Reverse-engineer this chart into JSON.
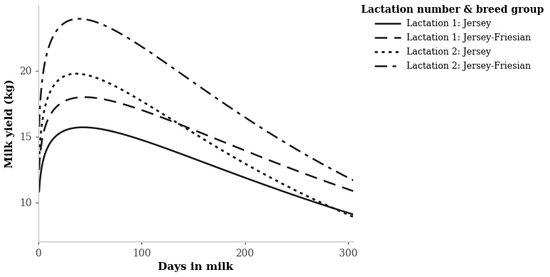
{
  "title": "",
  "xlabel": "Days in milk",
  "ylabel": "Milk yield (kg)",
  "xlim": [
    0,
    305
  ],
  "ylim": [
    7,
    25
  ],
  "yticks": [
    10,
    15,
    20
  ],
  "xticks": [
    0,
    100,
    200,
    300
  ],
  "legend_title": "Lactation number & breed group",
  "curves": [
    {
      "label": "Lactation 1: Jersey",
      "linestyle": "solid",
      "linewidth": 1.8,
      "a": 10.8,
      "b": 0.135,
      "c": 0.0031
    },
    {
      "label": "Lactation 1: Jersey-Friesian",
      "linestyle": "dashed",
      "linewidth": 1.8,
      "a": 12.5,
      "b": 0.13,
      "c": 0.0029
    },
    {
      "label": "Lactation 2: Jersey",
      "linestyle": "dotted",
      "linewidth": 2.0,
      "a": 13.2,
      "b": 0.155,
      "c": 0.0042
    },
    {
      "label": "Lactation 2: Jersey-Friesian",
      "linestyle": "dashdot",
      "linewidth": 1.8,
      "a": 15.8,
      "b": 0.155,
      "c": 0.0039
    }
  ],
  "background_color": "#ffffff",
  "line_color": "#1a1a1a",
  "font_family": "DejaVu Serif"
}
